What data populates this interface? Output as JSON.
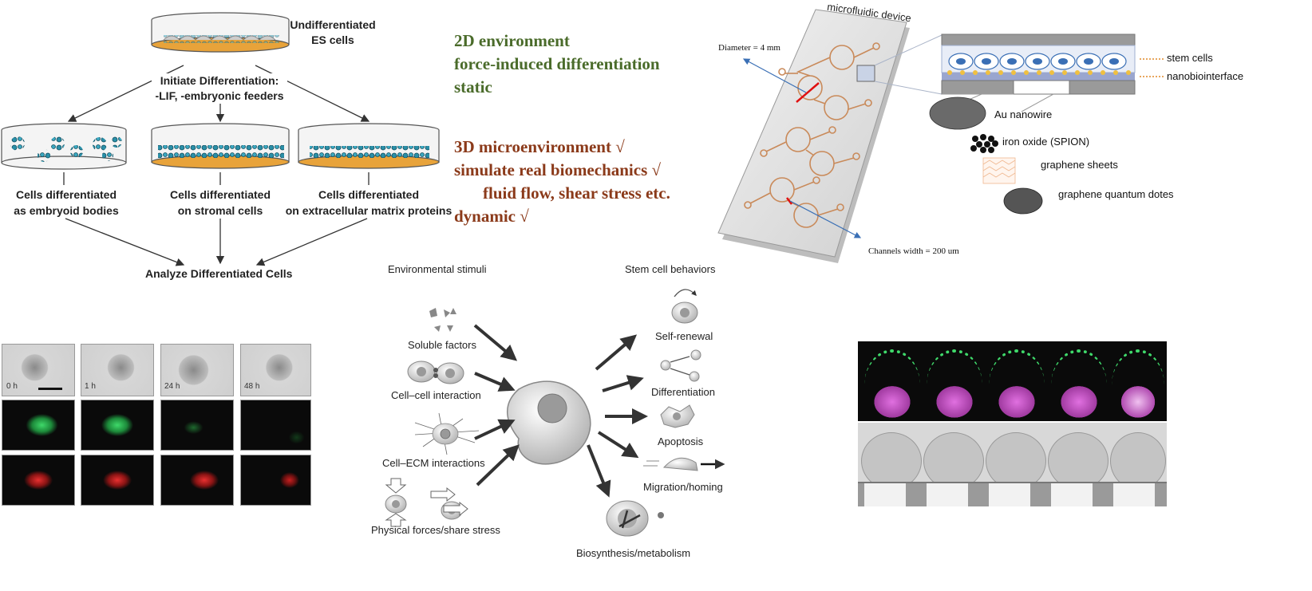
{
  "left_diagram": {
    "top_label": [
      "Undifferentiated",
      "ES cells"
    ],
    "initiate": [
      "Initiate Differentiation:",
      "-LIF, -embryonic feeders"
    ],
    "branches": [
      [
        "Cells differentiated",
        "as embryoid bodies"
      ],
      [
        "Cells differentiated",
        "on stromal cells"
      ],
      [
        "Cells differentiated",
        "on extracellular matrix proteins"
      ]
    ],
    "analyze": "Analyze Differentiated Cells"
  },
  "env2d": {
    "lines": [
      "2D environment",
      "force-induced differentiation",
      "static"
    ],
    "color": "#4a6b2a"
  },
  "env3d": {
    "lines": [
      "3D microenvironment √",
      "simulate real biomechanics √",
      "fluid flow, shear stress etc.",
      "dynamic √"
    ],
    "color": "#8b3a1a"
  },
  "microfluidic": {
    "title": "microfluidic device",
    "diameter": "Diameter = 4 mm",
    "channels": "Channels width = 200 um",
    "layer_labels": [
      "stem cells",
      "nanobiointerface"
    ],
    "materials": [
      "Au nanowire",
      "iron oxide (SPION)",
      "graphene sheets",
      "graphene quantum dotes"
    ]
  },
  "stimuli": {
    "left_title": "Environmental stimuli",
    "right_title": "Stem cell behaviors",
    "inputs": [
      "Soluble factors",
      "Cell–cell interaction",
      "Cell–ECM interactions",
      "Physical forces/share stress"
    ],
    "outputs": [
      "Self-renewal",
      "Differentiation",
      "Apoptosis",
      "Migration/homing",
      "Biosynthesis/metabolism"
    ]
  },
  "timelapse": {
    "times": [
      "0 h",
      "1 h",
      "24 h",
      "48 h"
    ]
  },
  "colors": {
    "accent_green": "#4a6b2a",
    "accent_brown": "#8b3a1a",
    "dish_orange": "#e8a33a",
    "cell_teal": "#2a8fa8",
    "channel_orange": "#c98a5a"
  }
}
